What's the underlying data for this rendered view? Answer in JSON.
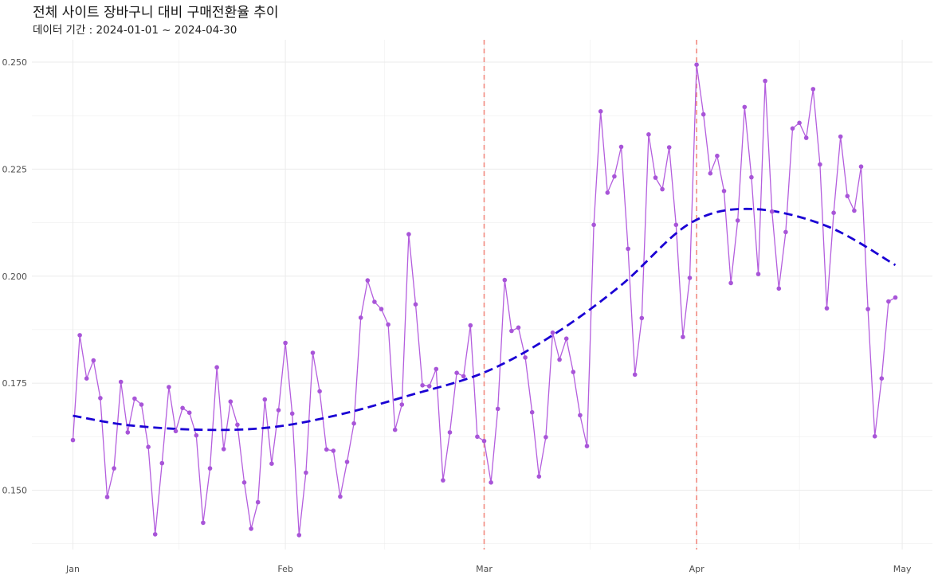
{
  "chart_data": {
    "type": "line",
    "title": "전체 사이트 장바구니 대비 구매전환율 추이",
    "subtitle": "데이터 기간 : 2024-01-01 ~ 2024-04-30",
    "xlabel": "",
    "ylabel": "",
    "x_range": [
      "2024-01-01",
      "2024-05-03"
    ],
    "ylim": [
      0.137,
      0.2505
    ],
    "grid": true,
    "x_ticks": [
      {
        "date": "2024-01-01",
        "label": "Jan"
      },
      {
        "date": "2024-02-01",
        "label": "Feb"
      },
      {
        "date": "2024-03-01",
        "label": "Mar"
      },
      {
        "date": "2024-04-01",
        "label": "Apr"
      },
      {
        "date": "2024-05-01",
        "label": "May"
      }
    ],
    "y_ticks": [
      {
        "value": 0.15,
        "label": "0.150"
      },
      {
        "value": 0.175,
        "label": "0.175"
      },
      {
        "value": 0.2,
        "label": "0.200"
      },
      {
        "value": 0.225,
        "label": "0.225"
      },
      {
        "value": 0.25,
        "label": "0.250"
      }
    ],
    "vlines": [
      "2024-03-01",
      "2024-04-01"
    ],
    "colors": {
      "line": "#b45ede",
      "points": "#a855d8",
      "trend": "#1a00d4",
      "vline": "#f28a80",
      "grid": "#ebebeb"
    },
    "series": [
      {
        "kind": "daily",
        "start_date": "2024-01-01",
        "values": [
          0.1617,
          0.1862,
          0.1761,
          0.1803,
          0.1715,
          0.1484,
          0.1551,
          0.1753,
          0.1635,
          0.1714,
          0.17,
          0.1601,
          0.1397,
          0.1563,
          0.1741,
          0.1638,
          0.1692,
          0.1681,
          0.1628,
          0.1424,
          0.1551,
          0.1787,
          0.1596,
          0.1707,
          0.1653,
          0.1518,
          0.141,
          0.1472,
          0.1712,
          0.1562,
          0.1687,
          0.1844,
          0.1679,
          0.1395,
          0.1541,
          0.1821,
          0.1731,
          0.1595,
          0.1592,
          0.1485,
          0.1566,
          0.1656,
          0.1903,
          0.199,
          0.194,
          0.1923,
          0.1887,
          0.1641,
          0.17,
          0.2098,
          0.1934,
          0.1745,
          0.1743,
          0.1783,
          0.1523,
          0.1635,
          0.1774,
          0.1766,
          0.1885,
          0.1625,
          0.1615,
          0.1518,
          0.169,
          0.1991,
          0.1872,
          0.188,
          0.181,
          0.1682,
          0.1532,
          0.1624,
          0.1868,
          0.1805,
          0.1854,
          0.1776,
          0.1675,
          0.1603,
          0.212,
          0.2385,
          0.2195,
          0.2233,
          0.2302,
          0.2064,
          0.177,
          0.1902,
          0.2331,
          0.223,
          0.2203,
          0.2301,
          0.212,
          0.1858,
          0.1996,
          0.2494,
          0.2378,
          0.224,
          0.2281,
          0.2199,
          0.1984,
          0.213,
          0.2395,
          0.2231,
          0.2005,
          0.2456,
          0.2151,
          0.1971,
          0.2103,
          0.2345,
          0.2358,
          0.2323,
          0.2437,
          0.2261,
          0.1925,
          0.2148,
          0.2326,
          0.2187,
          0.2153,
          0.2256,
          0.1923,
          0.1626,
          0.1761,
          0.1941,
          0.195
        ]
      },
      {
        "kind": "trend",
        "points": [
          {
            "x": "2024-01-01",
            "y": 0.1674
          },
          {
            "x": "2024-01-09",
            "y": 0.1652
          },
          {
            "x": "2024-01-20",
            "y": 0.1641
          },
          {
            "x": "2024-01-30",
            "y": 0.1647
          },
          {
            "x": "2024-02-09",
            "y": 0.1677
          },
          {
            "x": "2024-02-19",
            "y": 0.1721
          },
          {
            "x": "2024-03-01",
            "y": 0.1775
          },
          {
            "x": "2024-03-11",
            "y": 0.1862
          },
          {
            "x": "2024-03-21",
            "y": 0.1979
          },
          {
            "x": "2024-03-31",
            "y": 0.2123
          },
          {
            "x": "2024-04-09",
            "y": 0.2157
          },
          {
            "x": "2024-04-20",
            "y": 0.2117
          },
          {
            "x": "2024-04-30",
            "y": 0.2026
          }
        ]
      }
    ]
  }
}
